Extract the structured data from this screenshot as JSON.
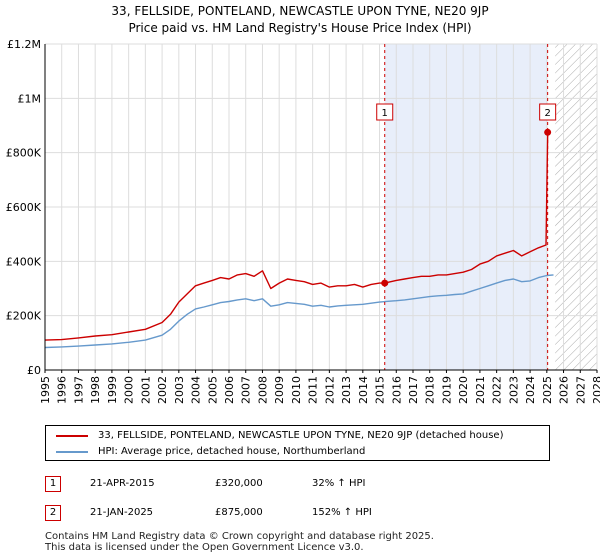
{
  "title_line1": "33, FELLSIDE, PONTELAND, NEWCASTLE UPON TYNE, NE20 9JP",
  "title_line2": "Price paid vs. HM Land Registry's House Price Index (HPI)",
  "legend": {
    "property_label": "33, FELLSIDE, PONTELAND, NEWCASTLE UPON TYNE, NE20 9JP (detached house)",
    "hpi_label": "HPI: Average price, detached house, Northumberland"
  },
  "sales": [
    {
      "num": "1",
      "date": "21-APR-2015",
      "price": "£320,000",
      "hpi": "32% ↑ HPI"
    },
    {
      "num": "2",
      "date": "21-JAN-2025",
      "price": "£875,000",
      "hpi": "152% ↑ HPI"
    }
  ],
  "footer": {
    "line1": "Contains HM Land Registry data © Crown copyright and database right 2025.",
    "line2": "This data is licensed under the Open Government Licence v3.0."
  },
  "colors": {
    "property": "#cc0000",
    "hpi": "#6699cc",
    "highlight": "#e8eefa",
    "grid": "#dddddd"
  },
  "chart_data": {
    "type": "line",
    "xlim": [
      1995,
      2028
    ],
    "ylim": [
      0,
      1200000
    ],
    "y_ticks": [
      {
        "value": 0,
        "label": "£0"
      },
      {
        "value": 200000,
        "label": "£200K"
      },
      {
        "value": 400000,
        "label": "£400K"
      },
      {
        "value": 600000,
        "label": "£600K"
      },
      {
        "value": 800000,
        "label": "£800K"
      },
      {
        "value": 1000000,
        "label": "£1M"
      },
      {
        "value": 1200000,
        "label": "£1.2M"
      }
    ],
    "x_ticks": [
      "1995",
      "1996",
      "1997",
      "1998",
      "1999",
      "2000",
      "2001",
      "2002",
      "2003",
      "2004",
      "2005",
      "2006",
      "2007",
      "2008",
      "2009",
      "2010",
      "2011",
      "2012",
      "2013",
      "2014",
      "2015",
      "2016",
      "2017",
      "2018",
      "2019",
      "2020",
      "2021",
      "2022",
      "2023",
      "2024",
      "2025",
      "2026",
      "2027",
      "2028"
    ],
    "highlight_range": [
      2015.3,
      2025.05
    ],
    "forecast_start": 2025.5,
    "series": [
      {
        "name": "33, FELLSIDE, PONTELAND, NEWCASTLE UPON TYNE, NE20 9JP (detached house)",
        "x": [
          1995.0,
          1996.0,
          1997.0,
          1998.0,
          1999.0,
          2000.0,
          2001.0,
          2002.0,
          2002.5,
          2003.0,
          2003.5,
          2004.0,
          2004.5,
          2005.0,
          2005.5,
          2006.0,
          2006.5,
          2007.0,
          2007.5,
          2008.0,
          2008.5,
          2009.0,
          2009.5,
          2010.0,
          2010.5,
          2011.0,
          2011.5,
          2012.0,
          2012.5,
          2013.0,
          2013.5,
          2014.0,
          2014.5,
          2015.0,
          2015.31,
          2016.0,
          2016.5,
          2017.0,
          2017.5,
          2018.0,
          2018.5,
          2019.0,
          2019.5,
          2020.0,
          2020.5,
          2021.0,
          2021.5,
          2022.0,
          2022.5,
          2023.0,
          2023.5,
          2024.0,
          2024.5,
          2024.95,
          2025.05
        ],
        "values": [
          110000,
          112000,
          118000,
          125000,
          130000,
          140000,
          150000,
          175000,
          205000,
          250000,
          280000,
          310000,
          320000,
          330000,
          340000,
          335000,
          350000,
          355000,
          345000,
          365000,
          300000,
          320000,
          335000,
          330000,
          325000,
          315000,
          320000,
          305000,
          310000,
          310000,
          315000,
          305000,
          315000,
          320000,
          320000,
          330000,
          335000,
          340000,
          345000,
          345000,
          350000,
          350000,
          355000,
          360000,
          370000,
          390000,
          400000,
          420000,
          430000,
          440000,
          420000,
          435000,
          450000,
          460000,
          875000
        ]
      },
      {
        "name": "HPI: Average price, detached house, Northumberland",
        "x": [
          1995.0,
          1996.0,
          1997.0,
          1998.0,
          1999.0,
          2000.0,
          2001.0,
          2002.0,
          2002.5,
          2003.0,
          2003.5,
          2004.0,
          2004.5,
          2005.0,
          2005.5,
          2006.0,
          2006.5,
          2007.0,
          2007.5,
          2008.0,
          2008.5,
          2009.0,
          2009.5,
          2010.0,
          2010.5,
          2011.0,
          2011.5,
          2012.0,
          2012.5,
          2013.0,
          2013.5,
          2014.0,
          2014.5,
          2015.0,
          2015.5,
          2016.0,
          2016.5,
          2017.0,
          2017.5,
          2018.0,
          2018.5,
          2019.0,
          2019.5,
          2020.0,
          2020.5,
          2021.0,
          2021.5,
          2022.0,
          2022.5,
          2023.0,
          2023.5,
          2024.0,
          2024.5,
          2025.0,
          2025.4
        ],
        "values": [
          83000,
          85000,
          88000,
          92000,
          96000,
          102000,
          110000,
          128000,
          150000,
          180000,
          205000,
          225000,
          232000,
          240000,
          248000,
          252000,
          258000,
          262000,
          255000,
          262000,
          235000,
          240000,
          248000,
          245000,
          242000,
          235000,
          238000,
          232000,
          236000,
          238000,
          240000,
          242000,
          246000,
          250000,
          253000,
          255000,
          258000,
          262000,
          266000,
          270000,
          273000,
          275000,
          278000,
          280000,
          290000,
          300000,
          310000,
          320000,
          330000,
          335000,
          325000,
          328000,
          340000,
          348000,
          350000
        ]
      }
    ],
    "markers": [
      {
        "label": "1",
        "x": 2015.31,
        "y": 320000
      },
      {
        "label": "2",
        "x": 2025.05,
        "y": 875000
      }
    ]
  }
}
